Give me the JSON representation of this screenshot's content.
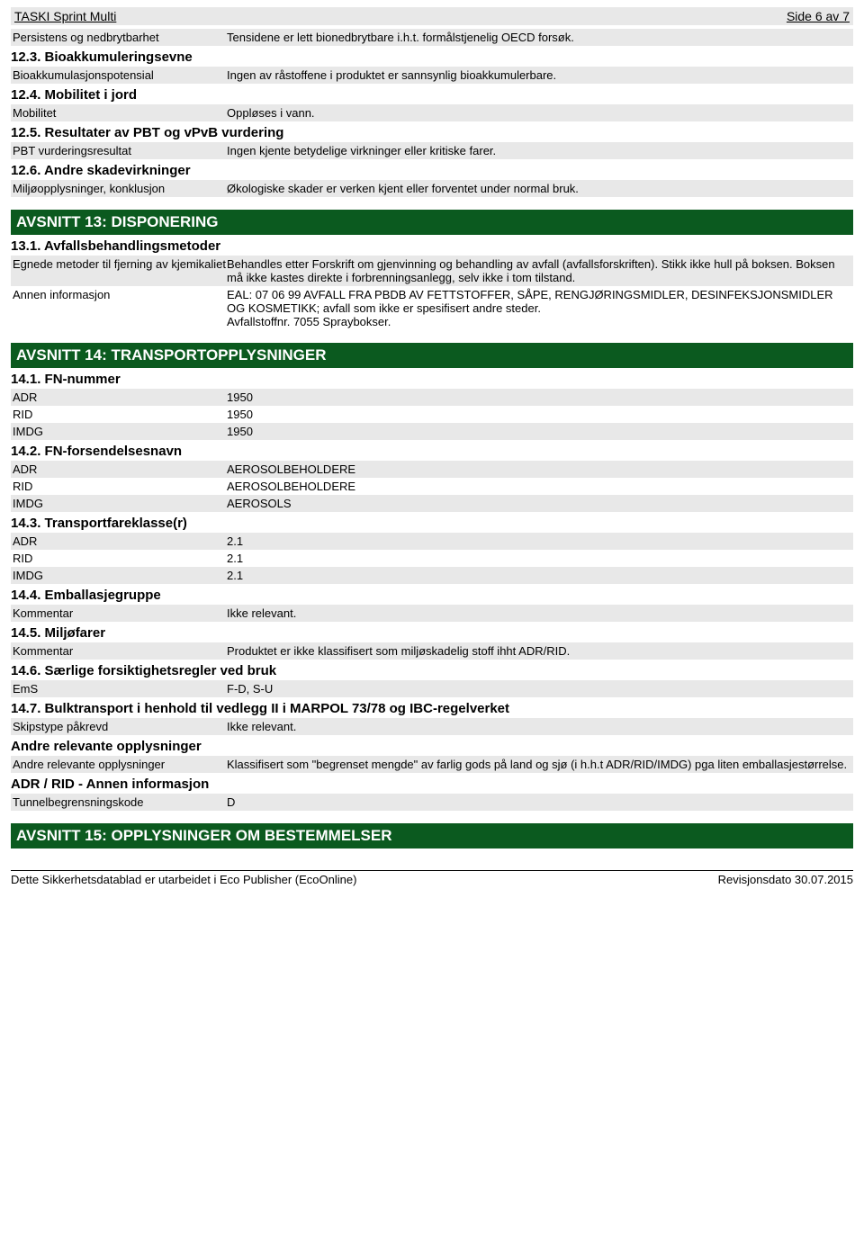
{
  "header": {
    "title": "TASKI Sprint Multi",
    "page": "Side 6 av 7"
  },
  "rows_top": [
    {
      "key": "Persistens og nedbrytbarhet",
      "val": "Tensidene er lett bionedbrytbare i.h.t. formålstjenelig OECD forsøk.",
      "shaded": true
    }
  ],
  "h123": "12.3. Bioakkumuleringsevne",
  "rows_123": [
    {
      "key": "Bioakkumulasjonspotensial",
      "val": "Ingen av råstoffene i produktet er sannsynlig bioakkumulerbare.",
      "shaded": true
    }
  ],
  "h124": "12.4. Mobilitet i jord",
  "rows_124": [
    {
      "key": "Mobilitet",
      "val": "Oppløses i vann.",
      "shaded": true
    }
  ],
  "h125": "12.5. Resultater av PBT og vPvB vurdering",
  "rows_125": [
    {
      "key": "PBT vurderingsresultat",
      "val": "Ingen kjente betydelige virkninger eller kritiske farer.",
      "shaded": true
    }
  ],
  "h126": "12.6. Andre skadevirkninger",
  "rows_126": [
    {
      "key": "Miljøopplysninger, konklusjon",
      "val": "Økologiske skader er verken kjent eller forventet under normal bruk.",
      "shaded": true
    }
  ],
  "section13": "AVSNITT 13: DISPONERING",
  "h131": "13.1. Avfallsbehandlingsmetoder",
  "rows_131": [
    {
      "key": "Egnede metoder til fjerning av kjemikaliet",
      "val": "Behandles etter Forskrift om gjenvinning og behandling av avfall (avfallsforskriften). Stikk ikke hull på boksen. Boksen må ikke kastes direkte i forbrenningsanlegg, selv ikke i tom tilstand.",
      "shaded": true
    },
    {
      "key": "Annen informasjon",
      "val": "EAL: 07 06 99 AVFALL FRA PBDB AV FETTSTOFFER, SÅPE, RENGJØRINGSMIDLER, DESINFEKSJONSMIDLER OG KOSMETIKK; avfall som ikke er spesifisert andre steder.\nAvfallstoffnr. 7055 Spraybokser.",
      "shaded": false
    }
  ],
  "section14": "AVSNITT 14: TRANSPORTOPPLYSNINGER",
  "h141": "14.1. FN-nummer",
  "rows_141": [
    {
      "key": "ADR",
      "val": "1950",
      "shaded": true
    },
    {
      "key": "RID",
      "val": "1950",
      "shaded": false
    },
    {
      "key": "IMDG",
      "val": "1950",
      "shaded": true
    }
  ],
  "h142": "14.2. FN-forsendelsesnavn",
  "rows_142": [
    {
      "key": "ADR",
      "val": "AEROSOLBEHOLDERE",
      "shaded": true
    },
    {
      "key": "RID",
      "val": "AEROSOLBEHOLDERE",
      "shaded": false
    },
    {
      "key": "IMDG",
      "val": "AEROSOLS",
      "shaded": true
    }
  ],
  "h143": "14.3. Transportfareklasse(r)",
  "rows_143": [
    {
      "key": "ADR",
      "val": "2.1",
      "shaded": true
    },
    {
      "key": "RID",
      "val": "2.1",
      "shaded": false
    },
    {
      "key": "IMDG",
      "val": "2.1",
      "shaded": true
    }
  ],
  "h144": "14.4. Emballasjegruppe",
  "rows_144": [
    {
      "key": "Kommentar",
      "val": "Ikke relevant.",
      "shaded": true
    }
  ],
  "h145": "14.5. Miljøfarer",
  "rows_145": [
    {
      "key": "Kommentar",
      "val": "Produktet er ikke klassifisert som miljøskadelig stoff ihht ADR/RID.",
      "shaded": true
    }
  ],
  "h146": "14.6. Særlige forsiktighetsregler ved bruk",
  "rows_146": [
    {
      "key": "EmS",
      "val": "F-D, S-U",
      "shaded": true
    }
  ],
  "h147": "14.7. Bulktransport i henhold til vedlegg II i MARPOL 73/78 og IBC-regelverket",
  "rows_147": [
    {
      "key": "Skipstype påkrevd",
      "val": "Ikke relevant.",
      "shaded": true
    }
  ],
  "h_andre": "Andre relevante opplysninger",
  "rows_andre": [
    {
      "key": "Andre relevante opplysninger",
      "val": "Klassifisert som \"begrenset mengde\" av farlig gods på land og sjø (i h.h.t ADR/RID/IMDG) pga liten emballasjestørrelse.",
      "shaded": true
    }
  ],
  "h_adrrid": "ADR / RID - Annen informasjon",
  "rows_adrrid": [
    {
      "key": "Tunnelbegrensningskode",
      "val": "D",
      "shaded": true
    }
  ],
  "section15": "AVSNITT 15: OPPLYSNINGER OM BESTEMMELSER",
  "footer": {
    "left": "Dette Sikkerhetsdatablad er utarbeidet i Eco Publisher (EcoOnline)",
    "right": "Revisjonsdato 30.07.2015"
  }
}
